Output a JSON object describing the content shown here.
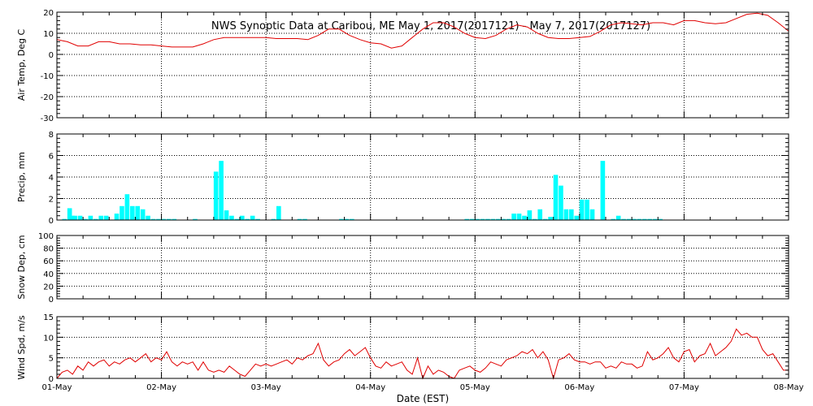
{
  "title": "NWS Synoptic Data at Caribou, ME   May  1, 2017(2017121) - May  7, 2017(2017127)",
  "xlabel": "Date (EST)",
  "x_tick_labels": [
    "01-May",
    "02-May",
    "03-May",
    "04-May",
    "05-May",
    "06-May",
    "07-May",
    "08-May"
  ],
  "colors": {
    "line": "#e00000",
    "bar": "#00ffff",
    "axis": "#000000",
    "grid": "#000000",
    "background": "#ffffff"
  },
  "chart_data": [
    {
      "type": "line",
      "ylabel": "Air Temp, Deg C",
      "ylim": [
        -30,
        20
      ],
      "yticks": [
        -30,
        -20,
        -10,
        0,
        10,
        20
      ],
      "xlim": [
        0,
        7
      ],
      "x_units": "days since 01-May 00:00 EST",
      "grid": "vertical dotted at day boundaries",
      "x": [
        0,
        0.1,
        0.2,
        0.3,
        0.4,
        0.5,
        0.6,
        0.7,
        0.8,
        0.9,
        1.0,
        1.1,
        1.2,
        1.3,
        1.4,
        1.5,
        1.6,
        1.7,
        1.8,
        1.9,
        2.0,
        2.1,
        2.2,
        2.3,
        2.4,
        2.5,
        2.6,
        2.7,
        2.8,
        2.9,
        3.0,
        3.1,
        3.2,
        3.3,
        3.4,
        3.5,
        3.6,
        3.7,
        3.8,
        3.9,
        4.0,
        4.1,
        4.2,
        4.3,
        4.4,
        4.5,
        4.6,
        4.7,
        4.8,
        4.9,
        5.0,
        5.1,
        5.2,
        5.3,
        5.4,
        5.5,
        5.6,
        5.7,
        5.8,
        5.9,
        6.0,
        6.1,
        6.2,
        6.3,
        6.4,
        6.5,
        6.6,
        6.7,
        6.8,
        6.9,
        7.0
      ],
      "values": [
        7,
        6,
        4,
        4,
        6,
        6,
        5,
        5,
        4.5,
        4.5,
        4,
        3.5,
        3.5,
        3.5,
        5,
        7,
        8,
        8,
        8,
        8,
        8,
        7.5,
        7.5,
        7.5,
        7,
        9,
        12,
        12,
        9,
        7,
        5.5,
        5,
        3,
        4,
        8,
        12,
        15,
        15,
        13,
        10,
        8,
        7.5,
        9,
        12,
        14,
        13,
        10,
        8,
        7.5,
        7.5,
        8,
        8.5,
        11,
        14,
        15,
        14.5,
        14,
        15,
        15,
        14,
        16,
        16,
        15,
        14.5,
        15,
        17,
        19,
        19.5,
        18.5,
        15,
        11
      ]
    },
    {
      "type": "bar",
      "ylabel": "Precip, mm",
      "ylim": [
        0,
        8
      ],
      "yticks": [
        0,
        2,
        4,
        6,
        8
      ],
      "xlim": [
        0,
        7
      ],
      "x_units": "days since 01-May 00:00 EST (hourly bins)",
      "x": [
        0.05,
        0.1,
        0.125,
        0.15,
        0.2,
        0.25,
        0.3,
        0.35,
        0.4,
        0.45,
        0.55,
        0.6,
        0.65,
        0.7,
        0.75,
        0.8,
        0.85,
        0.9,
        0.95,
        1.0,
        1.05,
        1.1,
        1.3,
        1.5,
        1.55,
        1.6,
        1.65,
        1.7,
        1.75,
        1.8,
        1.85,
        1.9,
        2.05,
        2.1,
        2.3,
        2.35,
        2.7,
        2.75,
        2.8,
        3.9,
        3.95,
        4.0,
        4.05,
        4.1,
        4.15,
        4.2,
        4.25,
        4.3,
        4.35,
        4.4,
        4.45,
        4.5,
        4.55,
        4.6,
        4.65,
        4.7,
        4.75,
        4.8,
        4.85,
        4.9,
        4.95,
        5.0,
        5.05,
        5.1,
        5.2,
        5.3,
        5.35,
        5.4,
        5.45,
        5.5,
        5.55,
        5.6,
        5.65,
        5.7,
        5.75
      ],
      "values": [
        0.1,
        1.1,
        0.4,
        0.4,
        0.4,
        0.1,
        0.4,
        0.1,
        0.4,
        0.4,
        0.6,
        1.3,
        2.4,
        1.3,
        1.3,
        1.0,
        0.4,
        0.1,
        0.1,
        0.1,
        0.1,
        0.1,
        0.1,
        4.5,
        5.5,
        0.9,
        0.4,
        0.1,
        0.4,
        0.1,
        0.4,
        0.1,
        0.1,
        1.3,
        0.1,
        0.1,
        0.1,
        0.1,
        0.1,
        0.1,
        0.1,
        0.1,
        0.1,
        0.1,
        0.1,
        0.1,
        0.1,
        0.1,
        0.6,
        0.6,
        0.4,
        0.9,
        0.1,
        1.0,
        0.1,
        0.3,
        4.2,
        3.2,
        1.0,
        1.0,
        0.4,
        1.9,
        1.9,
        1.0,
        5.5,
        0.1,
        0.4,
        0.1,
        0.1,
        0.1,
        0.1,
        0.1,
        0.1,
        0.1,
        0.1
      ]
    },
    {
      "type": "line",
      "ylabel": "Snow Dep, cm",
      "ylim": [
        0,
        100
      ],
      "yticks": [
        0,
        20,
        40,
        60,
        80,
        100
      ],
      "xlim": [
        0,
        7
      ],
      "x_units": "days since 01-May 00:00 EST",
      "x": [],
      "values": []
    },
    {
      "type": "line",
      "ylabel": "Wind Spd, m/s",
      "ylim": [
        0,
        15
      ],
      "yticks": [
        0,
        5,
        10,
        15
      ],
      "xlim": [
        0,
        7
      ],
      "x_units": "days since 01-May 00:00 EST",
      "x": [
        0,
        0.05,
        0.1,
        0.15,
        0.2,
        0.25,
        0.3,
        0.35,
        0.4,
        0.45,
        0.5,
        0.55,
        0.6,
        0.65,
        0.7,
        0.75,
        0.8,
        0.85,
        0.9,
        0.95,
        1.0,
        1.05,
        1.1,
        1.15,
        1.2,
        1.25,
        1.3,
        1.35,
        1.4,
        1.45,
        1.5,
        1.55,
        1.6,
        1.65,
        1.7,
        1.75,
        1.8,
        1.85,
        1.9,
        1.95,
        2.0,
        2.05,
        2.1,
        2.15,
        2.2,
        2.25,
        2.3,
        2.35,
        2.4,
        2.45,
        2.5,
        2.55,
        2.6,
        2.65,
        2.7,
        2.75,
        2.8,
        2.85,
        2.9,
        2.95,
        3.0,
        3.05,
        3.1,
        3.15,
        3.2,
        3.25,
        3.3,
        3.35,
        3.4,
        3.45,
        3.5,
        3.55,
        3.6,
        3.65,
        3.7,
        3.75,
        3.8,
        3.85,
        3.9,
        3.95,
        4.0,
        4.05,
        4.1,
        4.15,
        4.2,
        4.25,
        4.3,
        4.35,
        4.4,
        4.45,
        4.5,
        4.55,
        4.6,
        4.65,
        4.7,
        4.75,
        4.8,
        4.85,
        4.9,
        4.95,
        5.0,
        5.05,
        5.1,
        5.15,
        5.2,
        5.25,
        5.3,
        5.35,
        5.4,
        5.45,
        5.5,
        5.55,
        5.6,
        5.65,
        5.7,
        5.75,
        5.8,
        5.85,
        5.9,
        5.95,
        6.0,
        6.05,
        6.1,
        6.15,
        6.2,
        6.25,
        6.3,
        6.35,
        6.4,
        6.45,
        6.5,
        6.55,
        6.6,
        6.65,
        6.7,
        6.75,
        6.8,
        6.85,
        6.9,
        6.95,
        7.0
      ],
      "values": [
        0,
        1.5,
        2,
        1,
        3,
        2,
        4,
        3,
        4,
        4.5,
        3,
        4,
        3.5,
        4.5,
        5,
        4,
        5,
        6,
        4,
        5,
        4.5,
        6.5,
        4,
        3,
        4,
        3.5,
        4,
        2,
        4,
        2,
        1.5,
        2,
        1.5,
        3,
        2,
        1,
        0.5,
        2,
        3.5,
        3,
        3.5,
        3,
        3.5,
        4,
        4.5,
        3.5,
        5,
        4.5,
        5.5,
        6,
        8.5,
        4.5,
        3,
        4,
        4.5,
        6,
        7,
        5.5,
        6.5,
        7.5,
        5,
        3,
        2.5,
        4,
        3,
        3.5,
        4,
        2,
        1,
        5,
        0,
        3,
        1,
        2,
        1.5,
        0.5,
        0,
        2,
        2.5,
        3,
        2,
        1.5,
        2.5,
        4,
        3.5,
        3,
        4.5,
        5,
        5.5,
        6.5,
        6,
        7,
        5,
        6.5,
        4.5,
        0,
        4.5,
        5,
        6,
        4.5,
        4,
        4,
        3.5,
        4,
        4,
        2.5,
        3,
        2.5,
        4,
        3.5,
        3.5,
        2.5,
        3,
        6.5,
        4.5,
        5,
        6,
        7.5,
        5,
        4,
        6.5,
        7,
        4,
        5.5,
        6,
        8.5,
        5.5,
        6.5,
        7.5,
        9,
        12,
        10.5,
        11,
        10,
        10,
        7,
        5.5,
        6,
        4,
        2,
        2
      ]
    }
  ]
}
